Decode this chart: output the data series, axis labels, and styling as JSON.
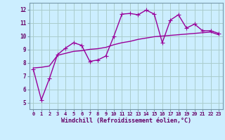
{
  "line1_x": [
    0,
    1,
    2,
    3,
    4,
    5,
    6,
    7,
    8,
    9,
    10,
    11,
    12,
    13,
    14,
    15,
    16,
    17,
    18,
    19,
    20,
    21,
    22,
    23
  ],
  "line1_y": [
    7.5,
    5.2,
    6.8,
    8.6,
    9.1,
    9.5,
    9.3,
    8.1,
    8.2,
    8.5,
    10.0,
    11.65,
    11.7,
    11.6,
    11.95,
    11.65,
    9.5,
    11.2,
    11.6,
    10.6,
    10.9,
    10.4,
    10.4,
    10.2
  ],
  "line2_x": [
    0,
    1,
    2,
    3,
    4,
    5,
    6,
    7,
    8,
    9,
    10,
    11,
    12,
    13,
    14,
    15,
    16,
    17,
    18,
    19,
    20,
    21,
    22,
    23
  ],
  "line2_y": [
    7.6,
    7.65,
    7.75,
    8.55,
    8.7,
    8.85,
    8.9,
    9.0,
    9.05,
    9.15,
    9.35,
    9.5,
    9.6,
    9.75,
    9.85,
    9.95,
    10.0,
    10.05,
    10.1,
    10.15,
    10.2,
    10.25,
    10.3,
    10.1
  ],
  "line_color": "#990099",
  "bg_color": "#cceeff",
  "grid_color": "#aacccc",
  "border_color": "#7799aa",
  "xlabel": "Windchill (Refroidissement éolien,°C)",
  "ylim": [
    4.5,
    12.5
  ],
  "xlim": [
    -0.5,
    23.5
  ],
  "yticks": [
    5,
    6,
    7,
    8,
    9,
    10,
    11,
    12
  ],
  "xticks": [
    0,
    1,
    2,
    3,
    4,
    5,
    6,
    7,
    8,
    9,
    10,
    11,
    12,
    13,
    14,
    15,
    16,
    17,
    18,
    19,
    20,
    21,
    22,
    23
  ],
  "markersize": 3,
  "linewidth": 1.0
}
